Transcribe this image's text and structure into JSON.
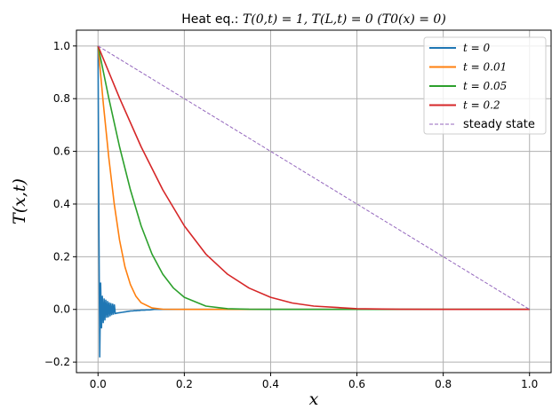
{
  "chart_data": {
    "type": "line",
    "title_prefix": "Heat eq.: ",
    "title_math": "T(0,t) = 1, T(L,t) = 0  (T0(x) = 0)",
    "title": "Heat eq.: T(0,t) = 1, T(L,t) = 0  (T0(x) = 0)",
    "xlabel": "x",
    "ylabel": "T(x,t)",
    "xlim": [
      -0.05,
      1.05
    ],
    "ylim": [
      -0.24,
      1.06
    ],
    "xticks": [
      0.0,
      0.2,
      0.4,
      0.6,
      0.8,
      1.0
    ],
    "xtick_labels": [
      "0.0",
      "0.2",
      "0.4",
      "0.6",
      "0.8",
      "1.0"
    ],
    "yticks": [
      -0.2,
      0.0,
      0.2,
      0.4,
      0.6,
      0.8,
      1.0
    ],
    "ytick_labels": [
      "−0.2",
      "0.0",
      "0.2",
      "0.4",
      "0.6",
      "0.8",
      "1.0"
    ],
    "grid": true,
    "legend_position": "top-right",
    "series": [
      {
        "name": "t = 0",
        "color": "#1f77b4",
        "dash": false,
        "x": [
          0,
          0.002,
          0.004,
          0.006,
          0.008,
          0.01,
          0.012,
          0.014,
          0.016,
          0.018,
          0.02,
          0.022,
          0.024,
          0.026,
          0.028,
          0.03,
          0.032,
          0.034,
          0.036,
          0.038,
          0.04,
          0.044,
          0.048,
          0.052,
          0.056,
          0.06,
          0.064,
          0.068,
          0.072,
          0.076,
          0.08,
          0.084,
          0.088,
          0.092,
          0.096,
          0.1,
          0.104,
          0.108,
          0.112,
          0.116,
          0.12,
          0.13,
          0.15,
          0.2,
          0.4,
          0.6,
          0.8,
          1.0
        ],
        "y": [
          1.0,
          0.35,
          -0.18,
          0.1,
          -0.07,
          0.05,
          -0.05,
          0.04,
          -0.04,
          0.035,
          -0.03,
          0.03,
          -0.028,
          0.025,
          -0.024,
          0.022,
          -0.02,
          0.02,
          -0.018,
          0.017,
          -0.016,
          -0.014,
          -0.013,
          -0.012,
          -0.011,
          -0.01,
          -0.009,
          -0.008,
          -0.007,
          -0.006,
          -0.006,
          -0.005,
          -0.005,
          -0.004,
          -0.004,
          -0.003,
          -0.003,
          -0.003,
          -0.002,
          -0.002,
          -0.002,
          0.0,
          0.0,
          0.0,
          0.0,
          0.0,
          0.0,
          0.0
        ],
        "osc_amp_note": "oscillating"
      },
      {
        "name": "t = 0.01",
        "color": "#ff7f0e",
        "dash": false,
        "x": [
          0,
          0.0125,
          0.025,
          0.0375,
          0.05,
          0.0625,
          0.075,
          0.0875,
          0.1,
          0.125,
          0.15,
          0.2,
          0.4,
          0.6,
          0.8,
          1.0
        ],
        "y": [
          1.0,
          0.779,
          0.576,
          0.401,
          0.263,
          0.161,
          0.0945,
          0.0505,
          0.0255,
          0.0054,
          0.0009,
          0,
          0,
          0,
          0,
          0
        ]
      },
      {
        "name": "t = 0.05",
        "color": "#2ca02c",
        "dash": false,
        "x": [
          0,
          0.025,
          0.05,
          0.075,
          0.1,
          0.125,
          0.15,
          0.175,
          0.2,
          0.25,
          0.3,
          0.35,
          0.4,
          0.6,
          0.8,
          1.0
        ],
        "y": [
          1.0,
          0.802,
          0.617,
          0.454,
          0.317,
          0.21,
          0.134,
          0.081,
          0.046,
          0.0126,
          0.0027,
          0.0005,
          0,
          0,
          0,
          0
        ]
      },
      {
        "name": "t = 0.2",
        "color": "#d62728",
        "dash": false,
        "x": [
          0,
          0.05,
          0.1,
          0.15,
          0.2,
          0.25,
          0.3,
          0.35,
          0.4,
          0.45,
          0.5,
          0.6,
          0.7,
          0.8,
          1.0
        ],
        "y": [
          1.0,
          0.802,
          0.617,
          0.454,
          0.317,
          0.21,
          0.134,
          0.081,
          0.046,
          0.0245,
          0.0126,
          0.0027,
          0.0005,
          0,
          0
        ]
      },
      {
        "name": "steady state",
        "color": "#9467bd",
        "dash": true,
        "x": [
          0,
          1
        ],
        "y": [
          1,
          0
        ]
      }
    ]
  }
}
